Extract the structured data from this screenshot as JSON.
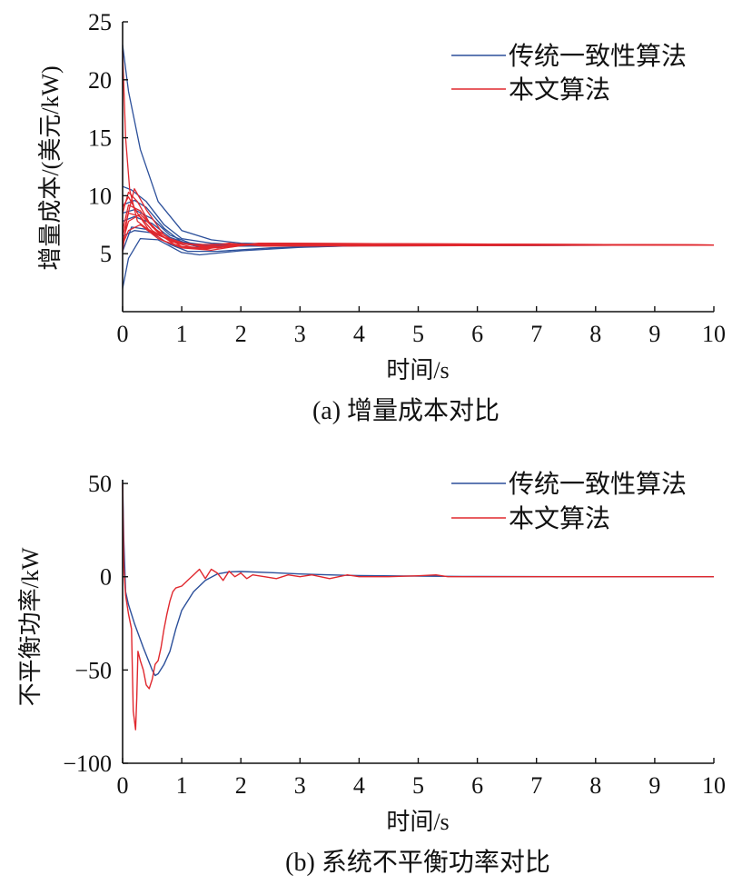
{
  "colors": {
    "blue": "#2b4f9a",
    "red": "#e0282e",
    "axis": "#111111"
  },
  "chart_data": [
    {
      "type": "line",
      "caption": "(a) 增量成本对比",
      "xlabel": "时间/s",
      "ylabel": "增量成本/(美元/kW)",
      "xlim": [
        0,
        10
      ],
      "ylim": [
        0,
        25
      ],
      "xticks": [
        "0",
        "1",
        "2",
        "3",
        "4",
        "5",
        "6",
        "7",
        "8",
        "9",
        "10"
      ],
      "yticks": [
        "5",
        "10",
        "15",
        "20",
        "25"
      ],
      "legend_position": "top-right",
      "legend": [
        "传统一致性算法",
        "本文算法"
      ],
      "converged_value": 5.75,
      "series": [
        {
          "name": "传统一致性算法",
          "color": "#2b4f9a",
          "lines": [
            {
              "x": [
                0,
                0.1,
                0.3,
                0.6,
                1,
                1.5,
                2,
                3,
                4,
                10
              ],
              "y": [
                23,
                19,
                14,
                9.5,
                7,
                6.2,
                5.9,
                5.8,
                5.75,
                5.75
              ]
            },
            {
              "x": [
                0,
                0.15,
                0.4,
                0.7,
                1,
                1.5,
                2,
                3,
                10
              ],
              "y": [
                10.8,
                10.5,
                9.5,
                7.5,
                6.3,
                5.9,
                5.8,
                5.75,
                5.75
              ]
            },
            {
              "x": [
                0,
                0.2,
                0.4,
                0.7,
                1,
                1.5,
                2.5,
                10
              ],
              "y": [
                9.2,
                9.6,
                9,
                7.2,
                6,
                5.7,
                5.75,
                5.75
              ]
            },
            {
              "x": [
                0,
                0.2,
                0.5,
                0.8,
                1.2,
                2,
                10
              ],
              "y": [
                8.5,
                8.8,
                8,
                6.6,
                5.8,
                5.7,
                5.75
              ]
            },
            {
              "x": [
                0,
                0.2,
                0.5,
                0.8,
                1.2,
                2,
                10
              ],
              "y": [
                7.8,
                8.2,
                7.6,
                6.4,
                5.7,
                5.7,
                5.75
              ]
            },
            {
              "x": [
                0,
                0.2,
                0.5,
                0.9,
                1.3,
                2,
                10
              ],
              "y": [
                6.5,
                7,
                6.8,
                6,
                5.6,
                5.65,
                5.75
              ]
            },
            {
              "x": [
                0,
                0.1,
                0.3,
                0.6,
                1,
                1.3,
                2,
                3,
                4,
                10
              ],
              "y": [
                2,
                4.6,
                6.3,
                6.2,
                5.1,
                4.9,
                5.25,
                5.55,
                5.7,
                5.75
              ]
            },
            {
              "x": [
                0,
                0.15,
                0.4,
                0.8,
                1.1,
                1.6,
                2.5,
                4,
                10
              ],
              "y": [
                5.2,
                7.3,
                7.1,
                5.8,
                5.2,
                5.2,
                5.5,
                5.7,
                5.75
              ]
            }
          ]
        },
        {
          "name": "本文算法",
          "color": "#e0282e",
          "lines": [
            {
              "x": [
                0,
                0.05,
                0.12,
                0.25,
                0.4,
                0.6,
                0.9,
                1.2,
                2,
                10
              ],
              "y": [
                22.5,
                15,
                10.5,
                7.8,
                7.2,
                6.6,
                6,
                5.8,
                5.8,
                5.75
              ]
            },
            {
              "x": [
                0,
                0.1,
                0.25,
                0.45,
                0.7,
                1,
                1.5,
                2.2,
                3,
                10
              ],
              "y": [
                8.5,
                10.3,
                9.5,
                7.7,
                6.4,
                5.9,
                5.6,
                5.8,
                5.75,
                5.75
              ]
            },
            {
              "x": [
                0,
                0.1,
                0.25,
                0.45,
                0.7,
                1,
                1.4,
                2,
                2.6,
                10
              ],
              "y": [
                9,
                9.9,
                8.5,
                7,
                6.1,
                5.6,
                5.4,
                5.85,
                5.7,
                5.75
              ]
            },
            {
              "x": [
                0,
                0.1,
                0.3,
                0.5,
                0.8,
                1.1,
                1.6,
                2.3,
                10
              ],
              "y": [
                7,
                9.2,
                8.7,
                7.3,
                6.3,
                5.8,
                5.5,
                5.9,
                5.75
              ]
            },
            {
              "x": [
                0,
                0.1,
                0.3,
                0.5,
                0.8,
                1.2,
                1.8,
                2.4,
                10
              ],
              "y": [
                6.5,
                8.5,
                8.2,
                7,
                6.1,
                5.5,
                5.9,
                5.65,
                5.75
              ]
            },
            {
              "x": [
                0,
                0.1,
                0.3,
                0.6,
                0.9,
                1.3,
                2,
                10
              ],
              "y": [
                6,
                7.8,
                8.4,
                6.8,
                5.7,
                5.4,
                5.8,
                5.75
              ]
            },
            {
              "x": [
                0,
                0.08,
                0.2,
                0.4,
                0.7,
                1,
                1.5,
                2.2,
                10
              ],
              "y": [
                5.2,
                8.2,
                10.6,
                8.8,
                6.6,
                5.6,
                5.5,
                5.8,
                5.75
              ]
            },
            {
              "x": [
                0,
                0.1,
                0.3,
                0.6,
                1,
                1.5,
                2,
                2.5,
                10
              ],
              "y": [
                5.8,
                7,
                7.5,
                6.3,
                5.5,
                5.3,
                5.7,
                5.9,
                5.75
              ]
            }
          ]
        }
      ]
    },
    {
      "type": "line",
      "caption": "(b) 系统不平衡功率对比",
      "xlabel": "时间/s",
      "ylabel": "不平衡功率/kW",
      "xlim": [
        0,
        10
      ],
      "ylim": [
        -100,
        52
      ],
      "xticks": [
        "0",
        "1",
        "2",
        "3",
        "4",
        "5",
        "6",
        "7",
        "8",
        "9",
        "10"
      ],
      "yticks": [
        "50",
        "0",
        "-50",
        "-100"
      ],
      "legend_position": "top-right",
      "legend": [
        "传统一致性算法",
        "本文算法"
      ],
      "series": [
        {
          "name": "传统一致性算法",
          "color": "#2b4f9a",
          "x": [
            0,
            0.02,
            0.05,
            0.1,
            0.2,
            0.35,
            0.5,
            0.55,
            0.6,
            0.7,
            0.8,
            0.9,
            1.0,
            1.2,
            1.4,
            1.6,
            1.8,
            2.0,
            2.5,
            3.0,
            3.5,
            4.0,
            5.0,
            6.0,
            8.0,
            10.0
          ],
          "y": [
            52,
            20,
            -8,
            -15,
            -25,
            -38,
            -50,
            -53,
            -52,
            -47,
            -40,
            -28,
            -18,
            -8,
            -2,
            1.5,
            2.6,
            2.8,
            2.2,
            1.5,
            1,
            0.6,
            0.3,
            0.1,
            0,
            0
          ]
        },
        {
          "name": "本文算法",
          "color": "#e0282e",
          "x": [
            0,
            0.02,
            0.05,
            0.1,
            0.15,
            0.18,
            0.22,
            0.24,
            0.26,
            0.3,
            0.35,
            0.4,
            0.45,
            0.5,
            0.55,
            0.6,
            0.65,
            0.7,
            0.75,
            0.8,
            0.85,
            0.9,
            1.0,
            1.1,
            1.2,
            1.3,
            1.4,
            1.5,
            1.6,
            1.7,
            1.8,
            1.9,
            2.0,
            2.1,
            2.2,
            2.4,
            2.6,
            2.8,
            3.0,
            3.2,
            3.5,
            3.8,
            4.0,
            4.5,
            5.0,
            5.3,
            5.5,
            6.0,
            7.0,
            8.0,
            9.0,
            10.0
          ],
          "y": [
            50,
            5,
            -10,
            -20,
            -28,
            -72,
            -82,
            -65,
            -40,
            -45,
            -50,
            -58,
            -60,
            -55,
            -47,
            -45,
            -38,
            -28,
            -20,
            -13,
            -8,
            -6,
            -5,
            -2,
            1,
            4,
            -1,
            4,
            2,
            -2,
            3,
            0,
            2,
            -1,
            1,
            0,
            -1,
            1,
            0,
            1,
            -1,
            1,
            0,
            0,
            0.5,
            1,
            0,
            0,
            0,
            0,
            0,
            0
          ]
        }
      ]
    }
  ]
}
